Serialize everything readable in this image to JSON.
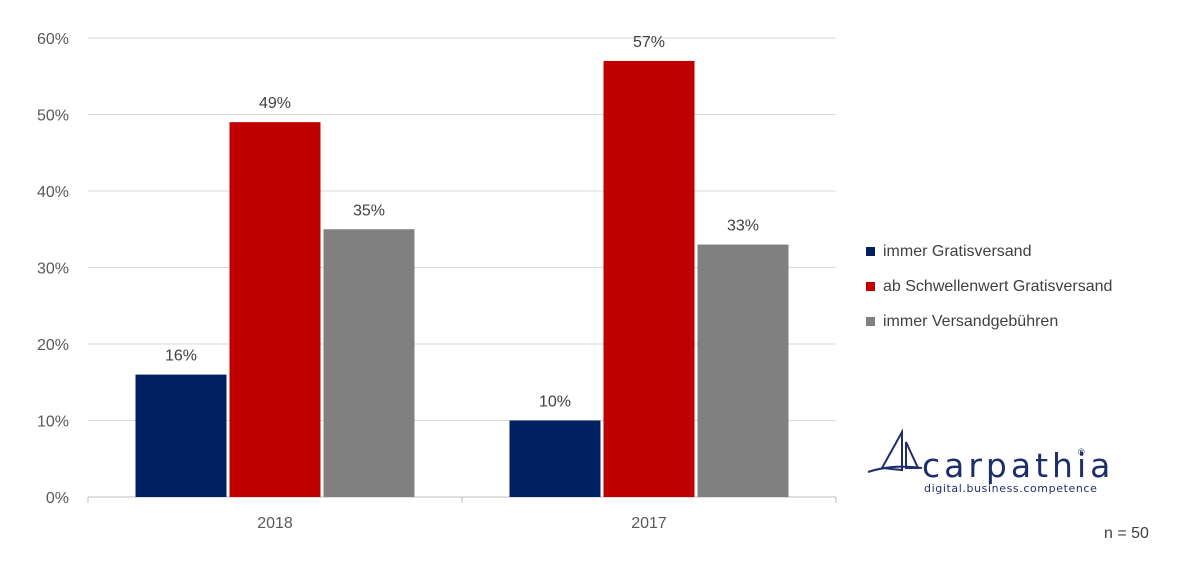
{
  "chart_data": {
    "type": "bar",
    "categories": [
      "2018",
      "2017"
    ],
    "series": [
      {
        "name": "immer Gratisversand",
        "values": [
          16,
          10
        ],
        "labels": [
          "16%",
          "10%"
        ],
        "color": "#002060"
      },
      {
        "name": "ab Schwellenwert Gratisversand",
        "values": [
          49,
          57
        ],
        "labels": [
          "49%",
          "57%"
        ],
        "color": "#c00000"
      },
      {
        "name": "immer Versandgebühren",
        "values": [
          35,
          33
        ],
        "labels": [
          "35%",
          "33%"
        ],
        "color": "#808080"
      }
    ],
    "ylim": [
      0,
      60
    ],
    "yticks": [
      "0%",
      "10%",
      "20%",
      "30%",
      "40%",
      "50%",
      "60%"
    ],
    "grid": true,
    "legend_position": "right"
  },
  "logo": {
    "wordmark": "carpathia",
    "tagline": "digital.business.competence",
    "reg": "®"
  },
  "footnote": "n = 50"
}
